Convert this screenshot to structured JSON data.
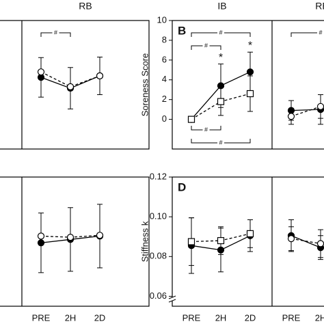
{
  "chart_data": [
    {
      "type": "line",
      "ylim": [
        -3,
        10
      ],
      "groups": [
        {
          "title": "RB",
          "series": [
            {
              "marker": "filled-circle",
              "dash": "solid",
              "values": [
                4.25,
                3.15,
                4.4
              ],
              "errors": [
                2.0,
                2.1,
                1.9
              ]
            },
            {
              "marker": "open-circle",
              "dash": "dashed",
              "values": [
                4.8,
                3.3,
                4.4
              ]
            }
          ],
          "brackets": [
            {
              "text": "#",
              "from": 0,
              "to": 1,
              "side": "above"
            }
          ]
        }
      ]
    },
    {
      "type": "line",
      "panel_label": "B",
      "ylabel": "Soreness Score",
      "ylim": [
        -3,
        10
      ],
      "yticks": [
        0,
        2,
        4,
        6,
        8,
        10
      ],
      "groups": [
        {
          "title": "IB",
          "series": [
            {
              "marker": "filled-circle",
              "dash": "solid",
              "values": [
                0,
                3.4,
                4.8
              ],
              "errors": [
                0,
                2.2,
                2.0
              ]
            },
            {
              "marker": "open-square",
              "dash": "dashed",
              "values": [
                0,
                1.8,
                2.6
              ],
              "errors": [
                0,
                1.4,
                1.8
              ]
            }
          ],
          "stars": [
            {
              "text": "*",
              "series": 0,
              "index": 1
            },
            {
              "text": "*",
              "series": 0,
              "index": 2
            }
          ],
          "brackets": [
            {
              "text": "#",
              "from": 0,
              "to": 2,
              "side": "above"
            },
            {
              "text": "#",
              "from": 0,
              "to": 1,
              "side": "above"
            },
            {
              "text": "#",
              "from": 0,
              "to": 1,
              "side": "below"
            },
            {
              "text": "#",
              "from": 0,
              "to": 2,
              "side": "below"
            }
          ]
        },
        {
          "title": "RB",
          "series": [
            {
              "marker": "filled-circle",
              "dash": "solid",
              "values": [
                0.9,
                1.0
              ],
              "errors": [
                1.0,
                1.5
              ]
            },
            {
              "marker": "open-circle",
              "dash": "dashed",
              "values": [
                0.3,
                1.3
              ],
              "errors": [
                0.8,
                1.2
              ]
            }
          ],
          "brackets": [
            {
              "text": "#",
              "from": 0,
              "to": 2,
              "side": "above"
            }
          ]
        }
      ]
    },
    {
      "type": "line",
      "ylim": [
        0.055,
        0.12
      ],
      "groups": [
        {
          "categories": [
            "PRE",
            "2H",
            "2D"
          ],
          "series": [
            {
              "marker": "filled-circle",
              "dash": "solid",
              "values": [
                0.0869,
                0.0886,
                0.0903
              ],
              "errors": [
                0.015,
                0.016,
                0.016
              ]
            },
            {
              "marker": "open-circle",
              "dash": "dashed",
              "values": [
                0.0903,
                0.0897,
                0.0907
              ]
            }
          ]
        }
      ]
    },
    {
      "type": "line",
      "panel_label": "D",
      "ylabel": "Stiffness k",
      "ylim": [
        0.055,
        0.12
      ],
      "yticks": [
        0.06,
        0.08,
        {
          "value": 0.1,
          "label": "0.10"
        },
        0.12
      ],
      "groups": [
        {
          "categories": [
            "PRE",
            "2H",
            "2D"
          ],
          "series": [
            {
              "marker": "filled-circle",
              "dash": "solid",
              "values": [
                0.0855,
                0.0833,
                0.0905
              ],
              "errors": [
                0.014,
                0.011,
                0.008
              ]
            },
            {
              "marker": "open-square",
              "dash": "dashed",
              "values": [
                0.0875,
                0.088,
                0.0915
              ],
              "errors": [
                0.012,
                0.007,
                0.007
              ]
            }
          ]
        },
        {
          "categories": [
            "PRE",
            "2H"
          ],
          "series": [
            {
              "marker": "filled-circle",
              "dash": "solid",
              "values": [
                0.0905,
                0.0845
              ],
              "errors": [
                0.008,
                0.006
              ]
            },
            {
              "marker": "open-circle",
              "dash": "dashed",
              "values": [
                0.089,
                0.0865
              ],
              "errors": [
                0.006,
                0.007
              ]
            }
          ]
        }
      ]
    }
  ]
}
